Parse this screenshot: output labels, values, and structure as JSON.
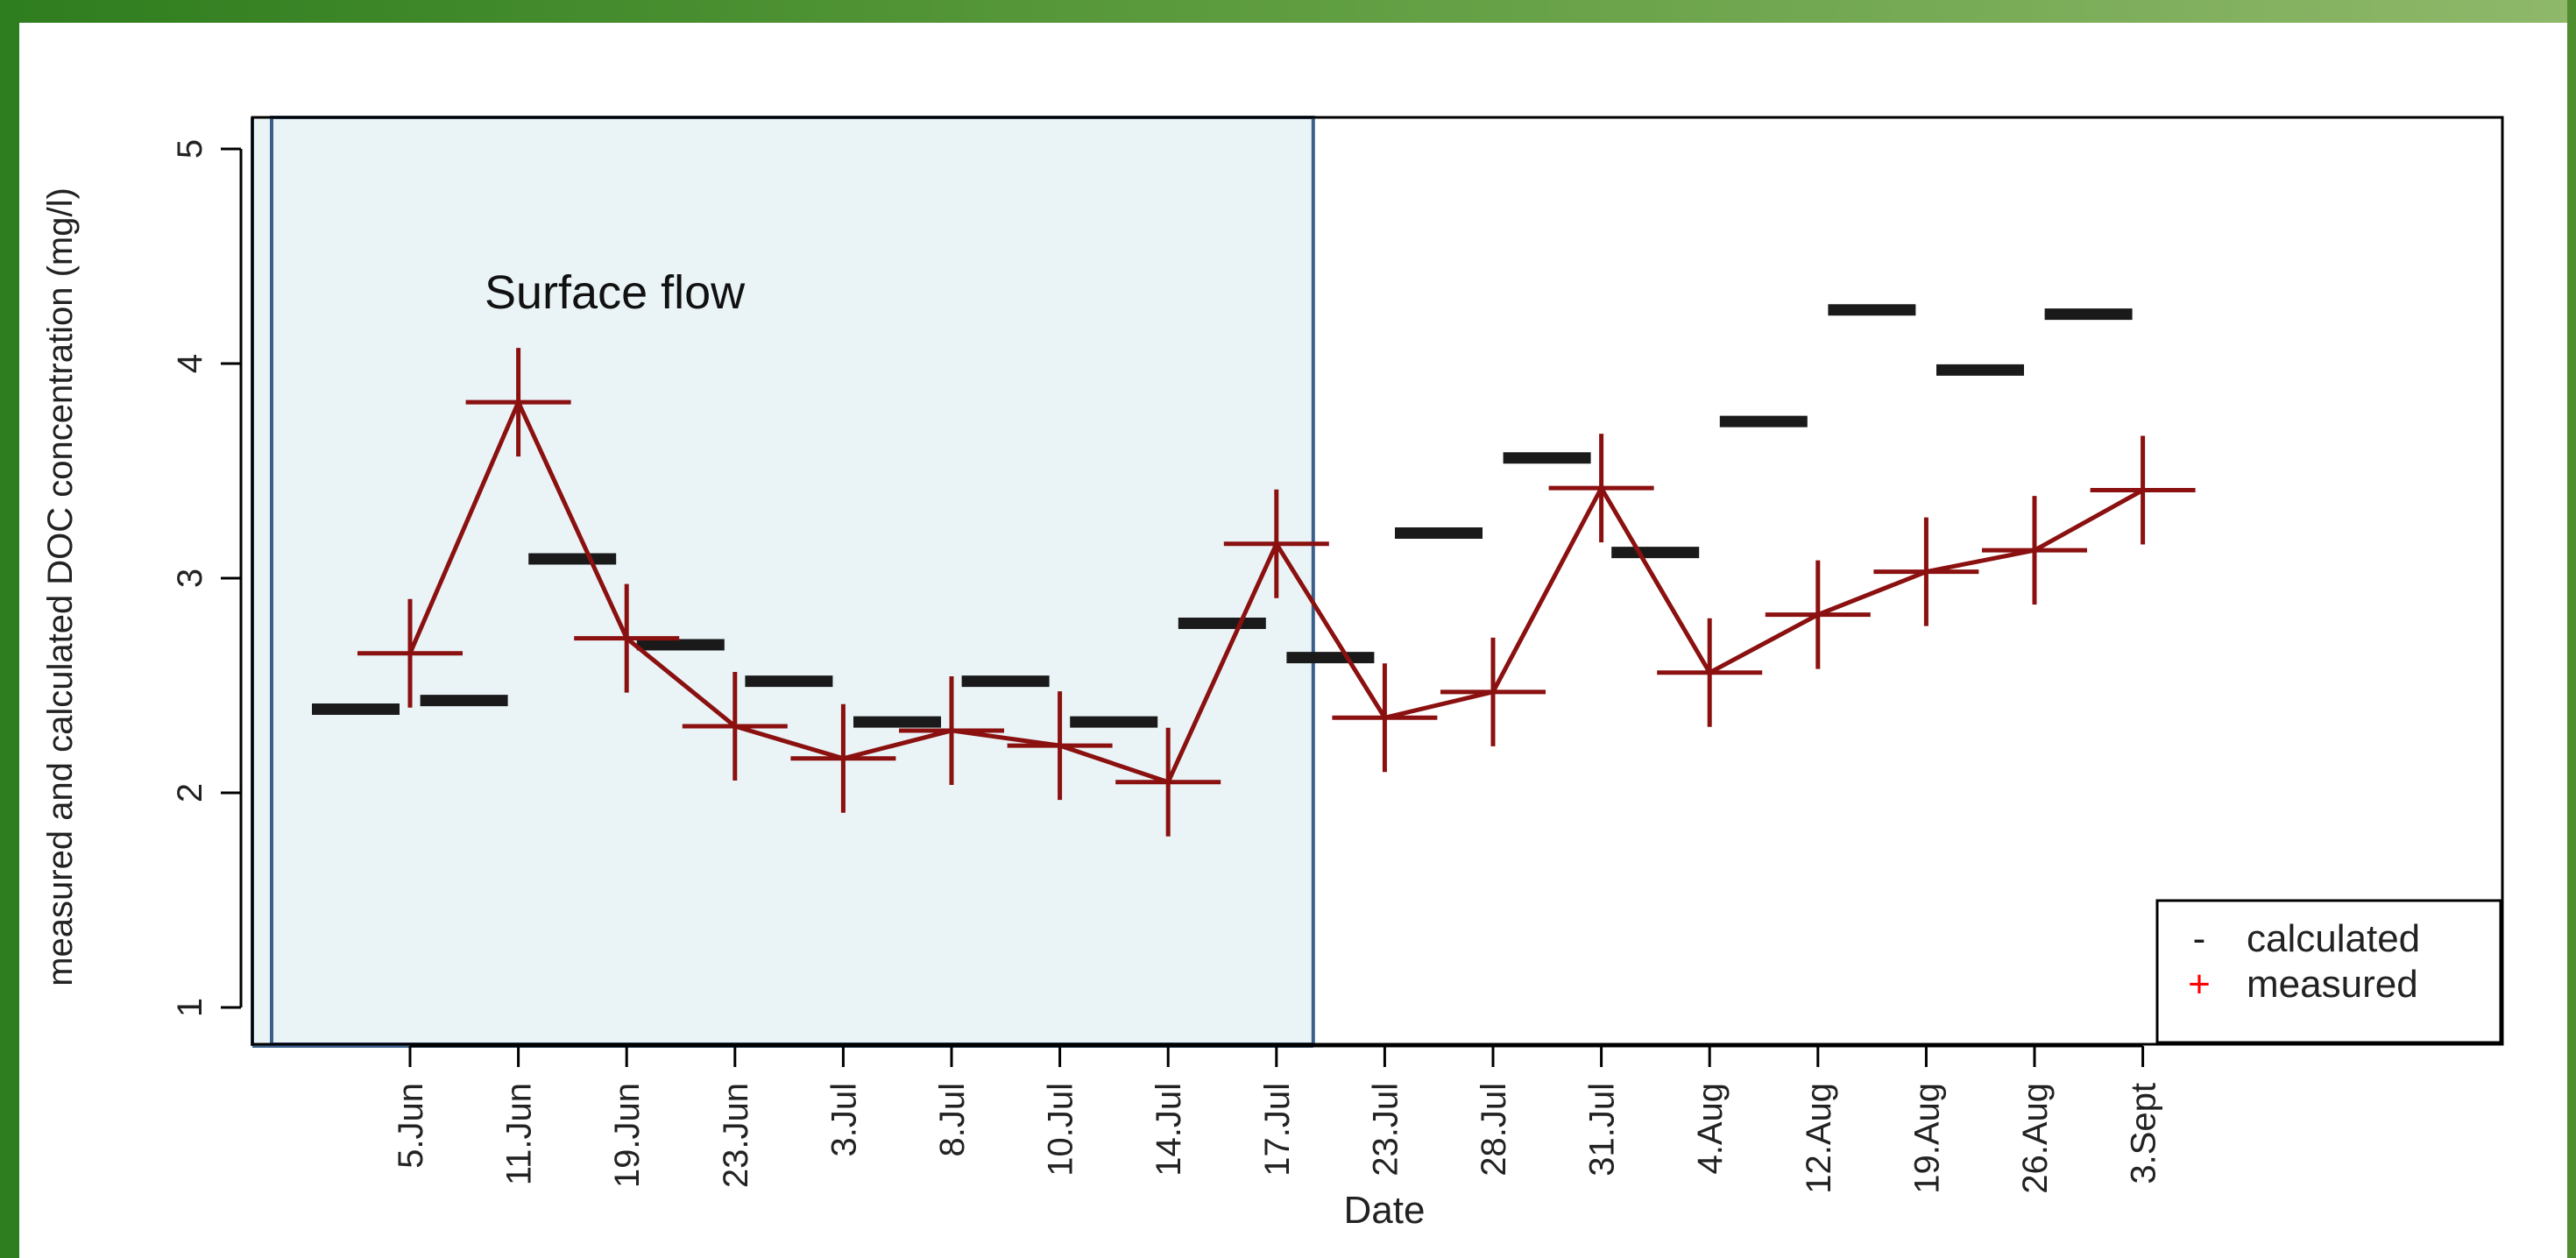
{
  "chart_data": {
    "type": "scatter",
    "xlabel": "Date",
    "ylabel": "measured and calculated DOC concentration (mg/l)",
    "ylim": [
      1,
      5
    ],
    "yticks": [
      1,
      2,
      3,
      4,
      5
    ],
    "categories": [
      "5.Jun",
      "11.Jun",
      "19.Jun",
      "23.Jun",
      "3.Jul",
      "8.Jul",
      "10.Jul",
      "14.Jul",
      "17.Jul",
      "23.Jul",
      "28.Jul",
      "31.Jul",
      "4.Aug",
      "12.Aug",
      "19.Aug",
      "26.Aug",
      "3.Sept"
    ],
    "series": [
      {
        "name": "calculated",
        "marker": "-",
        "color": "#1a1a1a",
        "values": [
          2.39,
          2.43,
          3.09,
          2.69,
          2.52,
          2.33,
          2.52,
          2.33,
          2.79,
          2.63,
          3.21,
          3.56,
          3.12,
          3.73,
          4.25,
          3.97,
          4.23
        ]
      },
      {
        "name": "measured",
        "marker": "+",
        "color": "#8b1010",
        "line": true,
        "values": [
          2.65,
          3.82,
          2.72,
          2.31,
          2.16,
          2.29,
          2.22,
          2.05,
          3.16,
          2.35,
          2.47,
          3.42,
          2.56,
          2.83,
          3.03,
          3.13,
          3.41
        ]
      }
    ],
    "highlight_region": {
      "label": "Surface flow",
      "from_category": "5.Jun",
      "to_category": "17.Jul",
      "color": "#eaf4f7",
      "border_color": "#3a5f8a"
    },
    "legend": {
      "position": "bottom-right",
      "entries": [
        {
          "symbol": "-",
          "label": "calculated",
          "color": "#1a1a1a"
        },
        {
          "symbol": "+",
          "label": "measured",
          "color": "#ff0000"
        }
      ]
    },
    "grid": false
  }
}
